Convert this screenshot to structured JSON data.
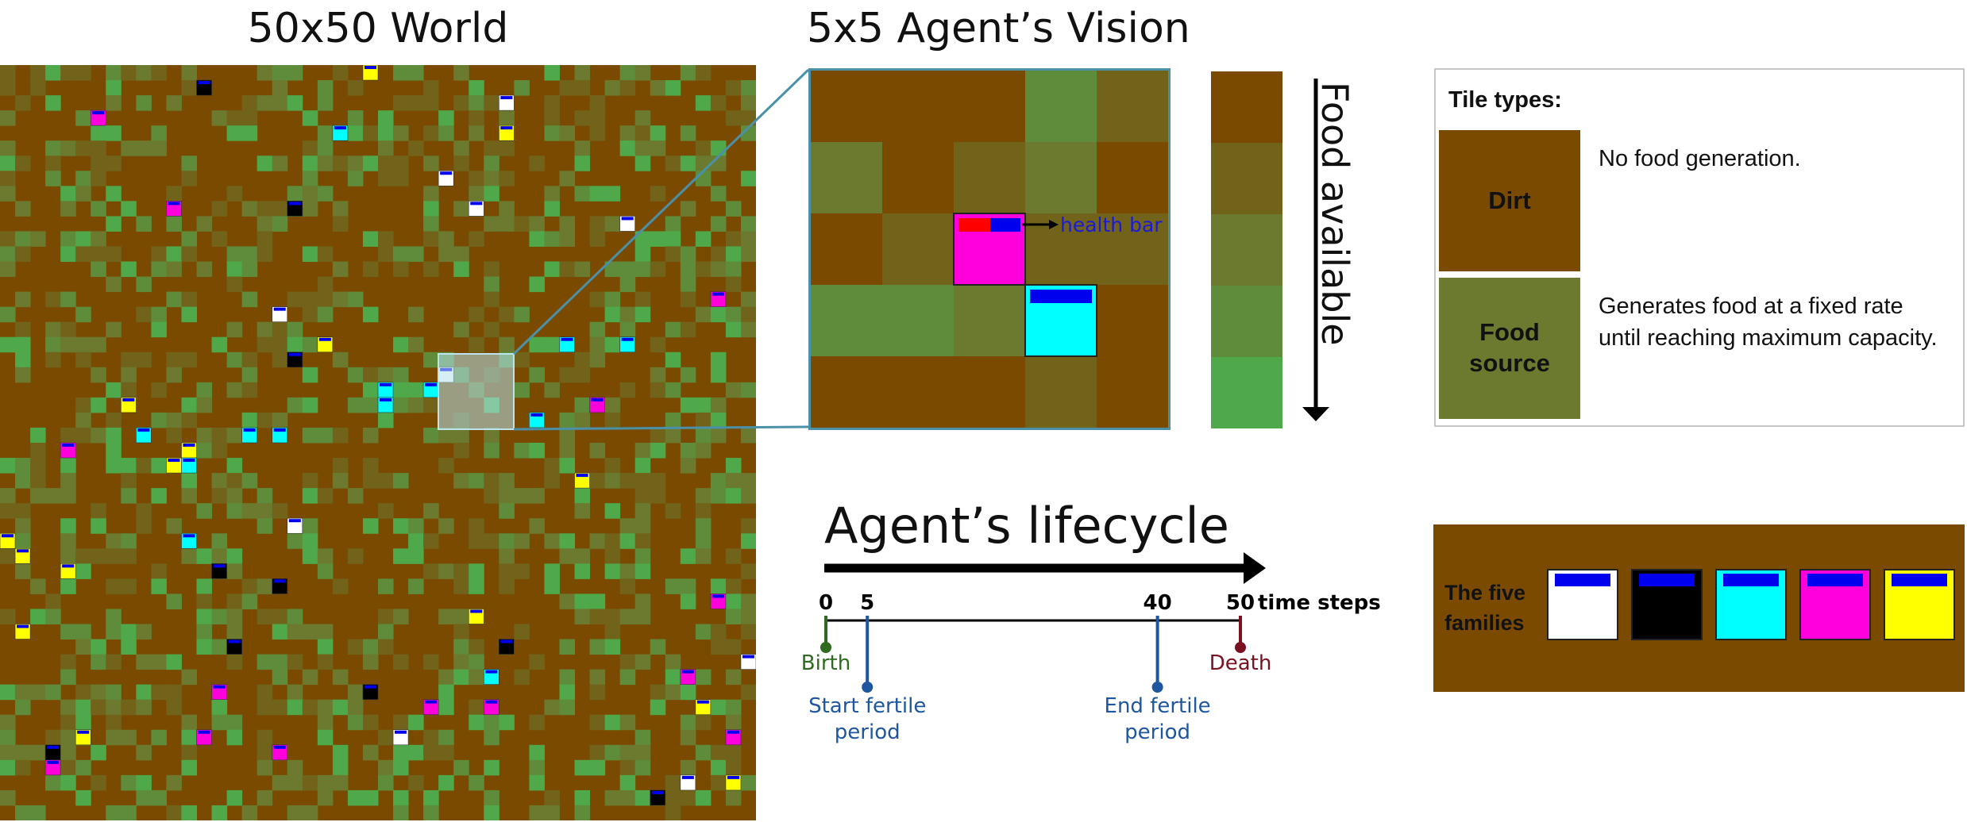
{
  "titles": {
    "world": "50x50 World",
    "vision": "5x5 Agent’s Vision",
    "food_available": "Food available",
    "lifecycle": "Agent’s lifecycle"
  },
  "colors": {
    "dirt": "#7a4a00",
    "food_levels": [
      "#7a4a00",
      "#72631a",
      "#6b7a2e",
      "#5f8c3a",
      "#4fa84a"
    ],
    "health_bar_red": "#ff0000",
    "health_bar_blue": "#0000ee",
    "families": [
      "#ffffff",
      "#000000",
      "#00ffff",
      "#ff00dd",
      "#ffff00"
    ]
  },
  "vision": {
    "health_bar_label": "health bar",
    "tiles": [
      [
        0,
        0,
        0,
        3,
        1
      ],
      [
        2,
        0,
        1,
        2,
        0
      ],
      [
        0,
        1,
        0,
        1,
        1
      ],
      [
        3,
        3,
        2,
        1,
        0
      ],
      [
        0,
        0,
        0,
        1,
        0
      ]
    ],
    "agents": [
      {
        "row": 2,
        "col": 2,
        "family": "magenta"
      },
      {
        "row": 3,
        "col": 3,
        "family": "cyan"
      }
    ]
  },
  "tile_types": {
    "heading": "Tile types:",
    "items": [
      {
        "name": "Dirt",
        "description": "No food generation."
      },
      {
        "name": "Food source",
        "description": "Generates food at a fixed rate until reaching maximum capacity."
      }
    ]
  },
  "lifecycle": {
    "unit_label": "time steps",
    "ticks": [
      {
        "value": 0,
        "label": "0",
        "event": "Birth",
        "color": "#2e6b1e"
      },
      {
        "value": 5,
        "label": "5",
        "event": "Start fertile period",
        "color": "#1e56a0"
      },
      {
        "value": 40,
        "label": "40",
        "event": "End fertile period",
        "color": "#1e56a0"
      },
      {
        "value": 50,
        "label": "50",
        "event": "Death",
        "color": "#7a1020"
      }
    ],
    "max": 50
  },
  "families": {
    "label": "The five families",
    "names": [
      "white",
      "black",
      "cyan",
      "magenta",
      "yellow"
    ]
  }
}
